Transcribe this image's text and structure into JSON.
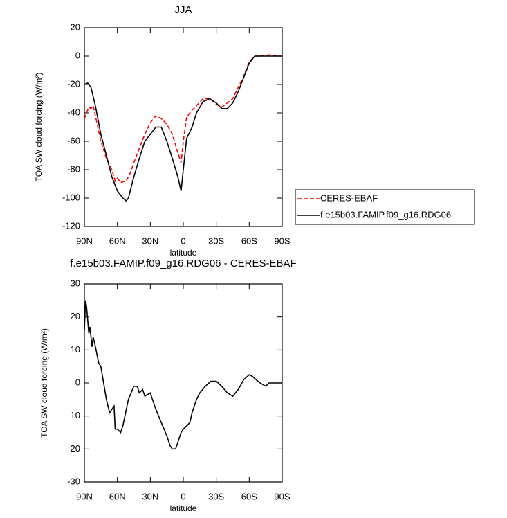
{
  "chart_data": [
    {
      "type": "line",
      "title": "JJA",
      "xlabel": "latitude",
      "ylabel": "TOA SW cloud forcing (W/m²)",
      "xlim": [
        90,
        -90
      ],
      "xticks": [
        {
          "value": 90,
          "label": "90N"
        },
        {
          "value": 60,
          "label": "60N"
        },
        {
          "value": 30,
          "label": "30N"
        },
        0,
        {
          "value": -30,
          "label": "30S"
        },
        {
          "value": -60,
          "label": "60S"
        },
        {
          "value": -90,
          "label": "90S"
        }
      ],
      "ylim": [
        -120,
        20
      ],
      "yticks": [
        -120,
        -100,
        -80,
        -60,
        -40,
        -20,
        0,
        20
      ],
      "legend": "right",
      "series": [
        {
          "name": "CERES-EBAF",
          "color": "#ff0000",
          "style": "dashed",
          "x": [
            90,
            88,
            86,
            84,
            82,
            80,
            75,
            70,
            65,
            62,
            60,
            57,
            52,
            48,
            45,
            40,
            35,
            30,
            25,
            20,
            15,
            10,
            5,
            2,
            0,
            -3,
            -8,
            -12,
            -18,
            -24,
            -30,
            -35,
            -40,
            -45,
            -50,
            -55,
            -60,
            -65,
            -70,
            -80,
            -85,
            -90
          ],
          "values": [
            -44,
            -40,
            -36,
            -37,
            -35,
            -42,
            -60,
            -72,
            -80,
            -88,
            -86,
            -89,
            -88,
            -82,
            -75,
            -65,
            -55,
            -47,
            -42,
            -44,
            -48,
            -55,
            -68,
            -75,
            -60,
            -43,
            -38,
            -35,
            -30,
            -30,
            -34,
            -36,
            -33,
            -30,
            -22,
            -14,
            -4,
            0,
            0,
            1,
            0,
            0
          ]
        },
        {
          "name": "f.e15b03.FAMIP.f09_g16.RDG06",
          "color": "#000000",
          "style": "solid",
          "x": [
            90,
            87,
            84,
            80,
            75,
            70,
            65,
            60,
            55,
            52,
            50,
            45,
            40,
            35,
            30,
            25,
            20,
            15,
            10,
            5,
            2,
            0,
            -3,
            -8,
            -12,
            -18,
            -24,
            -30,
            -35,
            -40,
            -45,
            -50,
            -55,
            -60,
            -65,
            -70,
            -80,
            -90
          ],
          "values": [
            -20,
            -19,
            -22,
            -35,
            -55,
            -70,
            -85,
            -95,
            -100,
            -102,
            -100,
            -85,
            -72,
            -60,
            -55,
            -50,
            -50,
            -60,
            -72,
            -85,
            -95,
            -80,
            -58,
            -50,
            -40,
            -32,
            -30,
            -33,
            -37,
            -37,
            -33,
            -25,
            -15,
            -5,
            0,
            0,
            0,
            0
          ]
        }
      ]
    },
    {
      "type": "line",
      "title": "f.e15b03.FAMIP.f09_g16.RDG06 - CERES-EBAF",
      "xlabel": "latitude",
      "ylabel": "TOA SW cloud forcing (W/m²)",
      "xlim": [
        90,
        -90
      ],
      "xticks": [
        {
          "value": 90,
          "label": "90N"
        },
        {
          "value": 60,
          "label": "60N"
        },
        {
          "value": 30,
          "label": "30N"
        },
        0,
        {
          "value": -30,
          "label": "30S"
        },
        {
          "value": -60,
          "label": "60S"
        },
        {
          "value": -90,
          "label": "90S"
        }
      ],
      "ylim": [
        -30,
        30
      ],
      "yticks": [
        -30,
        -20,
        -10,
        0,
        10,
        20,
        30
      ],
      "series": [
        {
          "color": "#000000",
          "style": "solid",
          "x": [
            90,
            89,
            88,
            86,
            85,
            83,
            82,
            80,
            77,
            75,
            73,
            70,
            67,
            65,
            63,
            62,
            60,
            57,
            55,
            50,
            45,
            42,
            40,
            37,
            35,
            30,
            25,
            20,
            15,
            12,
            10,
            7,
            5,
            2,
            0,
            -3,
            -6,
            -8,
            -12,
            -15,
            -20,
            -25,
            -30,
            -35,
            -40,
            -45,
            -50,
            -55,
            -60,
            -63,
            -66,
            -70,
            -75,
            -78,
            -85,
            -90
          ],
          "values": [
            16,
            25,
            23,
            15,
            17,
            11,
            14,
            11,
            6,
            5,
            1,
            -5,
            -9,
            -8,
            -7,
            -14,
            -14,
            -15,
            -13,
            -5,
            -1,
            -1,
            -3,
            -2,
            -4,
            -3,
            -8,
            -12,
            -16,
            -19,
            -20,
            -20,
            -18,
            -15,
            -14,
            -13,
            -12,
            -9,
            -5,
            -3,
            -1,
            0.5,
            0.5,
            -1,
            -3,
            -4,
            -2,
            1,
            2.5,
            2,
            1,
            0,
            -1,
            0,
            0,
            0
          ]
        }
      ]
    }
  ]
}
